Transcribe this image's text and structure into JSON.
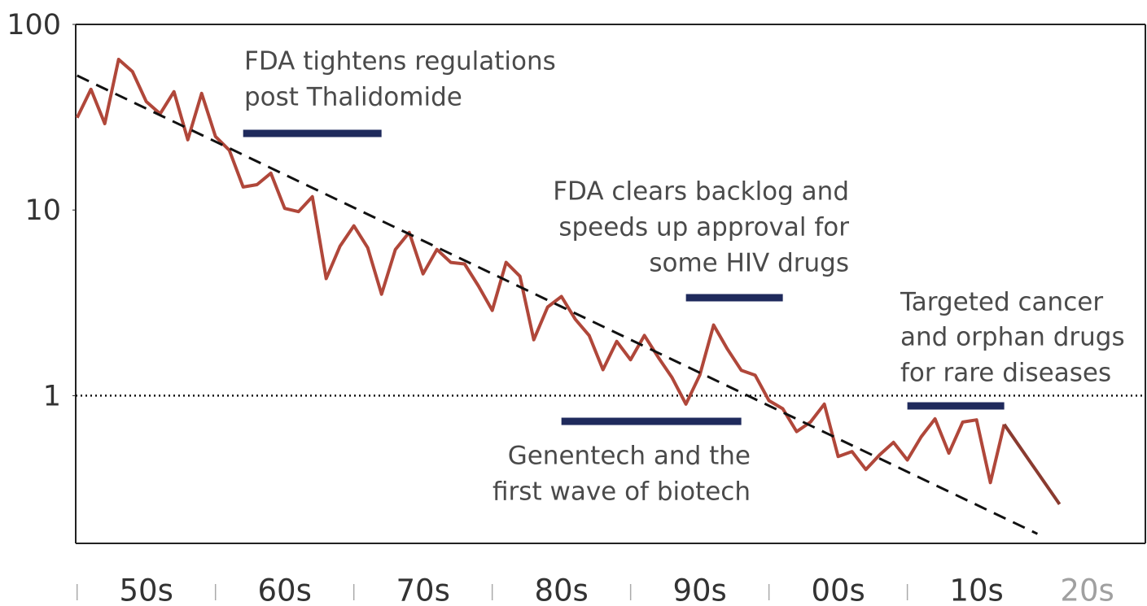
{
  "chart_data": {
    "type": "line",
    "log_y": true,
    "xlim": [
      1949.9,
      2027.2
    ],
    "ylim": [
      0.16,
      100
    ],
    "yticks": [
      1,
      10,
      100
    ],
    "xticks": [
      {
        "value": 1955,
        "label": "50s"
      },
      {
        "value": 1965,
        "label": "60s"
      },
      {
        "value": 1975,
        "label": "70s"
      },
      {
        "value": 1985,
        "label": "80s"
      },
      {
        "value": 1995,
        "label": "90s"
      },
      {
        "value": 2005,
        "label": "00s"
      },
      {
        "value": 2015,
        "label": "10s"
      },
      {
        "value": 2023,
        "label": "20s"
      }
    ],
    "xtick_colors": [
      "#333",
      "#333",
      "#333",
      "#333",
      "#333",
      "#333",
      "#333",
      "#a0a0a0"
    ],
    "xticks_minor": [
      1950,
      1960,
      1970,
      1980,
      1990,
      2000,
      2010
    ],
    "reference_line": 1,
    "series": [
      {
        "color": "#b0473a",
        "style": "solid",
        "x": [
          1950,
          1951,
          1952,
          1953,
          1954,
          1955,
          1956,
          1957,
          1958,
          1959,
          1960,
          1961,
          1962,
          1963,
          1964,
          1965,
          1966,
          1967,
          1968,
          1969,
          1970,
          1971,
          1972,
          1973,
          1974,
          1975,
          1976,
          1977,
          1978,
          1979,
          1980,
          1981,
          1982,
          1983,
          1984,
          1985,
          1986,
          1987,
          1988,
          1989,
          1990,
          1991,
          1992,
          1993,
          1994,
          1995,
          1996,
          1997,
          1998,
          1999,
          2000,
          2001,
          2002,
          2003,
          2004,
          2005,
          2006,
          2007,
          2008,
          2009,
          2010,
          2011,
          2012,
          2013,
          2014,
          2015,
          2016,
          2017
        ],
        "values": [
          31.4,
          44.7,
          29.2,
          64.8,
          55.7,
          38.4,
          33,
          43.4,
          23.9,
          42.5,
          24.9,
          21,
          13.3,
          13.7,
          15.8,
          10.2,
          9.8,
          11.8,
          4.27,
          6.39,
          8.22,
          6.26,
          3.52,
          6.13,
          7.58,
          4.53,
          6.13,
          5.22,
          5.12,
          3.9,
          2.88,
          5.22,
          4.4,
          2,
          3,
          3.42,
          2.58,
          2.11,
          1.38,
          1.96,
          1.56,
          2.11,
          1.61,
          1.25,
          0.9,
          1.29,
          2.4,
          1.78,
          1.37,
          1.29,
          0.94,
          0.85,
          0.64,
          0.72,
          0.9,
          0.47,
          0.5,
          0.4,
          0.48,
          0.56,
          0.45,
          0.6,
          0.75,
          0.49,
          0.72,
          0.74,
          0.34,
          0.7
        ]
      },
      {
        "color": "#8a3b30",
        "style": "solid",
        "x": [
          2017,
          2021
        ],
        "values": [
          0.7,
          0.26
        ]
      },
      {
        "color": "#111111",
        "style": "dashed",
        "x": [
          1950,
          2019.4
        ],
        "values": [
          53,
          0.18
        ]
      }
    ],
    "annotations": [
      {
        "lines": [
          "FDA tightens regulations",
          "post Thalidomide"
        ],
        "span": [
          1962,
          1972
        ]
      },
      {
        "lines": [
          "FDA clears backlog and",
          "speeds up approval for",
          "some HIV drugs"
        ],
        "span": [
          1994,
          2001
        ]
      },
      {
        "lines": [
          "Genentech and the",
          "first wave of biotech"
        ],
        "span": [
          1985,
          1998
        ]
      },
      {
        "lines": [
          "Targeted cancer",
          "and orphan drugs",
          "for rare diseases"
        ],
        "span": [
          2010,
          2017
        ]
      }
    ],
    "annotation_color": "#1f2a5c"
  }
}
